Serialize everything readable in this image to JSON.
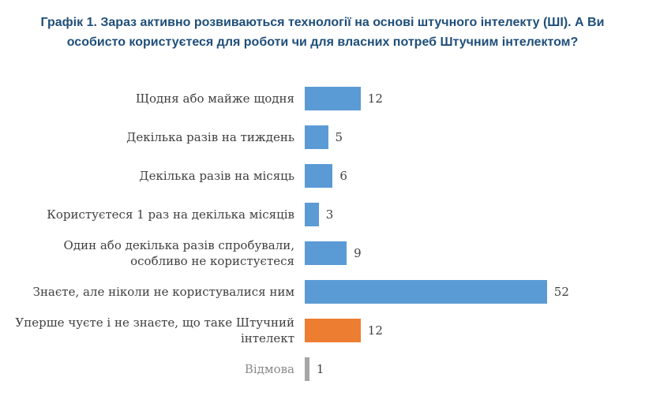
{
  "header": {
    "title_line1": "Графік 1. Зараз активно розвиваються технології на основі штучного інтелекту (ШІ). А Ви",
    "title_line2": "особисто користуєтеся для роботи чи для власних потреб Штучним інтелектом?"
  },
  "chart_data": {
    "type": "bar",
    "orientation": "horizontal",
    "title": "Графік 1. Зараз активно розвиваються технології на основі штучного інтелекту (ШІ). А Ви особисто користуєтеся для роботи чи для власних потреб Штучним інтелектом?",
    "categories": [
      "Щодня або майже щодня",
      "Декілька разів на тиждень",
      "Декілька разів на місяць",
      "Користуєтеся 1 раз на декілька місяців",
      "Один або декілька разів спробували, особливо не користуєтеся",
      "Знаєте, але ніколи не користувалися ним",
      "Уперше чуєте і не знаєте, що таке Штучний інтелект",
      "Відмова"
    ],
    "values": [
      12,
      5,
      6,
      3,
      9,
      52,
      12,
      1
    ],
    "bar_colors": [
      "#5B9BD5",
      "#5B9BD5",
      "#5B9BD5",
      "#5B9BD5",
      "#5B9BD5",
      "#5B9BD5",
      "#ED7D31",
      "#A6A6A6"
    ],
    "data_labels": [
      12,
      5,
      6,
      3,
      9,
      52,
      12,
      1
    ],
    "xlim": [
      0,
      55
    ],
    "grid": false,
    "legend": false,
    "colors": {
      "primary_blue": "#5B9BD5",
      "accent_orange": "#ED7D31",
      "neutral_gray": "#A6A6A6",
      "title_text": "#1F4E79",
      "label_text": "#404040"
    }
  }
}
